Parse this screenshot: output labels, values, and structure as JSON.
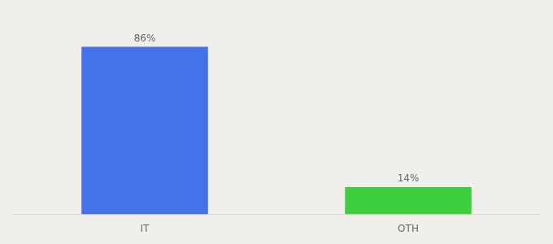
{
  "chart_data": {
    "type": "bar",
    "categories": [
      "IT",
      "OTH"
    ],
    "values": [
      86,
      14
    ],
    "value_labels": [
      "86%",
      "14%"
    ],
    "colors": [
      "#4472e8",
      "#3ecf3e"
    ],
    "ylim": [
      0,
      100
    ],
    "data_labels": true,
    "tick_labels": "x",
    "grid": false
  }
}
